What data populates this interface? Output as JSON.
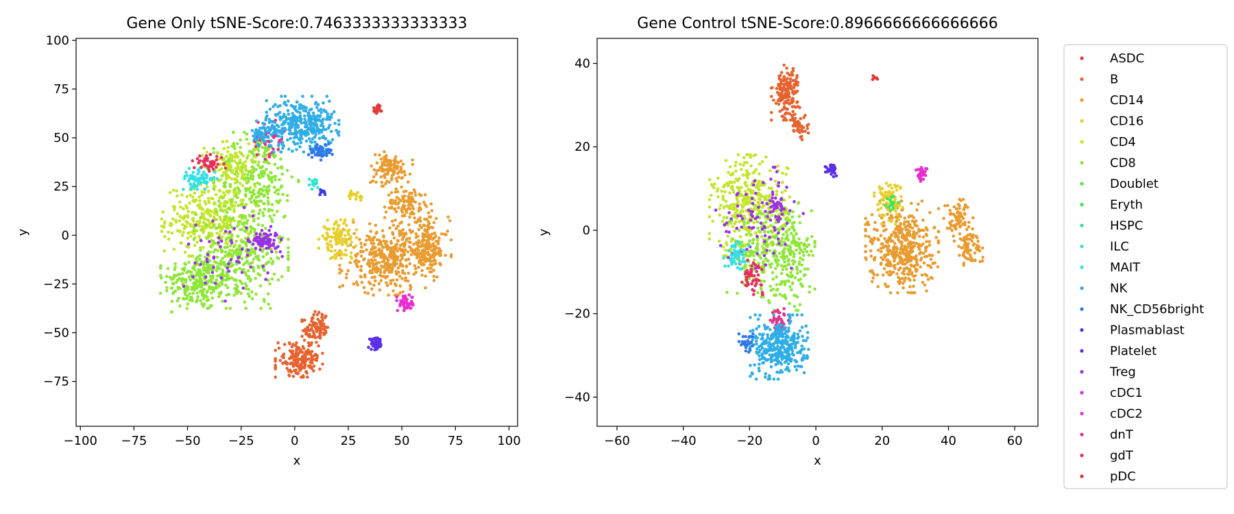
{
  "legend": {
    "placement": "right",
    "entries": [
      {
        "name": "ASDC",
        "color": "#e03b3b"
      },
      {
        "name": "B",
        "color": "#e6622f"
      },
      {
        "name": "CD14",
        "color": "#e89b2f"
      },
      {
        "name": "CD16",
        "color": "#e6cf2a"
      },
      {
        "name": "CD4",
        "color": "#c3e52a"
      },
      {
        "name": "CD8",
        "color": "#8ee638"
      },
      {
        "name": "Doublet",
        "color": "#52e83a"
      },
      {
        "name": "Eryth",
        "color": "#33e65a"
      },
      {
        "name": "HSPC",
        "color": "#2ee39a"
      },
      {
        "name": "ILC",
        "color": "#2fe3cf"
      },
      {
        "name": "MAIT",
        "color": "#33dfe6"
      },
      {
        "name": "NK",
        "color": "#2fade6"
      },
      {
        "name": "NK_CD56bright",
        "color": "#2f78e6"
      },
      {
        "name": "Plasmablast",
        "color": "#3b3be6"
      },
      {
        "name": "Platelet",
        "color": "#5a2fe6"
      },
      {
        "name": "Treg",
        "color": "#9a2fe6"
      },
      {
        "name": "cDC1",
        "color": "#cf2fe6"
      },
      {
        "name": "cDC2",
        "color": "#e62fcf"
      },
      {
        "name": "dnT",
        "color": "#e62f8a"
      },
      {
        "name": "gdT",
        "color": "#e62f5a"
      },
      {
        "name": "pDC",
        "color": "#e0312f"
      }
    ]
  },
  "chart_data": [
    {
      "type": "scatter",
      "title": "Gene Only tSNE-Score:0.7463333333333333",
      "xlabel": "x",
      "ylabel": "y",
      "xlim": [
        -102,
        104
      ],
      "ylim": [
        -98,
        101
      ],
      "xticks": [
        -100,
        -75,
        -50,
        -25,
        0,
        25,
        50,
        75,
        100
      ],
      "yticks": [
        -75,
        -50,
        -25,
        0,
        25,
        50,
        75,
        100
      ],
      "grid": false,
      "clusters": [
        {
          "label": "CD8",
          "cx": -45,
          "cy": -24,
          "rx": 16,
          "ry": 14,
          "n": 260
        },
        {
          "label": "CD4",
          "cx": -40,
          "cy": 8,
          "rx": 20,
          "ry": 17,
          "n": 320
        },
        {
          "label": "CD8",
          "cx": -25,
          "cy": -10,
          "rx": 20,
          "ry": 25,
          "n": 320
        },
        {
          "label": "CD8",
          "cx": -18,
          "cy": 30,
          "rx": 18,
          "ry": 22,
          "n": 260
        },
        {
          "label": "CD4",
          "cx": -30,
          "cy": 35,
          "rx": 12,
          "ry": 12,
          "n": 120
        },
        {
          "label": "MAIT",
          "cx": -45,
          "cy": 29,
          "rx": 8,
          "ry": 5,
          "n": 70
        },
        {
          "label": "gdT",
          "cx": -40,
          "cy": 37,
          "rx": 7,
          "ry": 4,
          "n": 45
        },
        {
          "label": "dnT",
          "cx": -12,
          "cy": 50,
          "rx": 8,
          "ry": 10,
          "n": 45
        },
        {
          "label": "Treg",
          "cx": -14,
          "cy": -3,
          "rx": 7,
          "ry": 5,
          "n": 70
        },
        {
          "label": "Treg",
          "cx": -30,
          "cy": -10,
          "rx": 22,
          "ry": 22,
          "n": 55
        },
        {
          "label": "NK",
          "cx": 3,
          "cy": 57,
          "rx": 16,
          "ry": 13,
          "n": 340
        },
        {
          "label": "NK",
          "cx": -15,
          "cy": 52,
          "rx": 5,
          "ry": 6,
          "n": 50
        },
        {
          "label": "NK_CD56bright",
          "cx": 12,
          "cy": 43,
          "rx": 5,
          "ry": 4,
          "n": 45
        },
        {
          "label": "ASDC",
          "cx": 39,
          "cy": 65,
          "rx": 2.2,
          "ry": 2.2,
          "n": 25
        },
        {
          "label": "CD14",
          "cx": 44,
          "cy": 34,
          "rx": 10,
          "ry": 8,
          "n": 110
        },
        {
          "label": "CD14",
          "cx": 53,
          "cy": 16,
          "rx": 10,
          "ry": 8,
          "n": 110
        },
        {
          "label": "CD14",
          "cx": 43,
          "cy": -12,
          "rx": 20,
          "ry": 17,
          "n": 380
        },
        {
          "label": "CD14",
          "cx": 62,
          "cy": -6,
          "rx": 10,
          "ry": 14,
          "n": 170
        },
        {
          "label": "CD16",
          "cx": 20,
          "cy": -2,
          "rx": 8,
          "ry": 9,
          "n": 110
        },
        {
          "label": "cDC2",
          "cx": 52,
          "cy": -35,
          "rx": 4,
          "ry": 4,
          "n": 50
        },
        {
          "label": "Platelet",
          "cx": 38,
          "cy": -56,
          "rx": 3.5,
          "ry": 3,
          "n": 45
        },
        {
          "label": "B",
          "cx": 10,
          "cy": -48,
          "rx": 6,
          "ry": 8,
          "n": 90
        },
        {
          "label": "B",
          "cx": 2,
          "cy": -64,
          "rx": 10,
          "ry": 8,
          "n": 170
        },
        {
          "label": "CD16",
          "cx": 28,
          "cy": 20,
          "rx": 3,
          "ry": 3,
          "n": 16
        },
        {
          "label": "Plasmablast",
          "cx": 13,
          "cy": 22,
          "rx": 1.5,
          "ry": 1.5,
          "n": 8
        },
        {
          "label": "ILC",
          "cx": 9,
          "cy": 27,
          "rx": 2,
          "ry": 3,
          "n": 12
        }
      ]
    },
    {
      "type": "scatter",
      "title": "Gene Control tSNE-Score:0.8966666666666666",
      "xlabel": "x",
      "ylabel": "y",
      "xlim": [
        -66,
        67
      ],
      "ylim": [
        -47,
        46
      ],
      "xticks": [
        -60,
        -40,
        -20,
        0,
        20,
        40,
        60
      ],
      "yticks": [
        -40,
        -20,
        0,
        20,
        40
      ],
      "grid": false,
      "clusters": [
        {
          "label": "B",
          "cx": -9,
          "cy": 33,
          "rx": 4,
          "ry": 6,
          "n": 160
        },
        {
          "label": "B",
          "cx": -5,
          "cy": 25,
          "rx": 2.5,
          "ry": 3,
          "n": 40
        },
        {
          "label": "ASDC",
          "cx": 18,
          "cy": 36.5,
          "rx": 0.8,
          "ry": 0.8,
          "n": 8
        },
        {
          "label": "Platelet",
          "cx": 5,
          "cy": 14.5,
          "rx": 2,
          "ry": 1.5,
          "n": 30
        },
        {
          "label": "CD4",
          "cx": -20,
          "cy": 6,
          "rx": 11,
          "ry": 11,
          "n": 360
        },
        {
          "label": "CD8",
          "cx": -8,
          "cy": -6,
          "rx": 7,
          "ry": 12,
          "n": 230
        },
        {
          "label": "CD8",
          "cx": -18,
          "cy": -5,
          "rx": 8,
          "ry": 10,
          "n": 140
        },
        {
          "label": "Treg",
          "cx": -17,
          "cy": 3,
          "rx": 12,
          "ry": 11,
          "n": 90
        },
        {
          "label": "Treg",
          "cx": -11,
          "cy": 6,
          "rx": 2.5,
          "ry": 2.5,
          "n": 25
        },
        {
          "label": "MAIT",
          "cx": -24,
          "cy": -6,
          "rx": 3.5,
          "ry": 3,
          "n": 50
        },
        {
          "label": "gdT",
          "cx": -19,
          "cy": -11,
          "rx": 3,
          "ry": 4,
          "n": 50
        },
        {
          "label": "dnT",
          "cx": -11,
          "cy": -22,
          "rx": 2.5,
          "ry": 3,
          "n": 40
        },
        {
          "label": "NK",
          "cx": -11,
          "cy": -28,
          "rx": 8,
          "ry": 7,
          "n": 340
        },
        {
          "label": "NK_CD56bright",
          "cx": -21,
          "cy": -27,
          "rx": 2,
          "ry": 2,
          "n": 30
        },
        {
          "label": "CD14",
          "cx": 26,
          "cy": -4,
          "rx": 10,
          "ry": 10,
          "n": 430
        },
        {
          "label": "CD14",
          "cx": 43,
          "cy": 3,
          "rx": 4,
          "ry": 4,
          "n": 70
        },
        {
          "label": "CD14",
          "cx": 46,
          "cy": -4,
          "rx": 4,
          "ry": 4,
          "n": 70
        },
        {
          "label": "CD16",
          "cx": 22,
          "cy": 7,
          "rx": 4,
          "ry": 5,
          "n": 90
        },
        {
          "label": "Eryth",
          "cx": 23,
          "cy": 7,
          "rx": 2,
          "ry": 2,
          "n": 14
        },
        {
          "label": "cDC2",
          "cx": 32,
          "cy": 13.5,
          "rx": 1.6,
          "ry": 1.6,
          "n": 40
        }
      ]
    }
  ]
}
